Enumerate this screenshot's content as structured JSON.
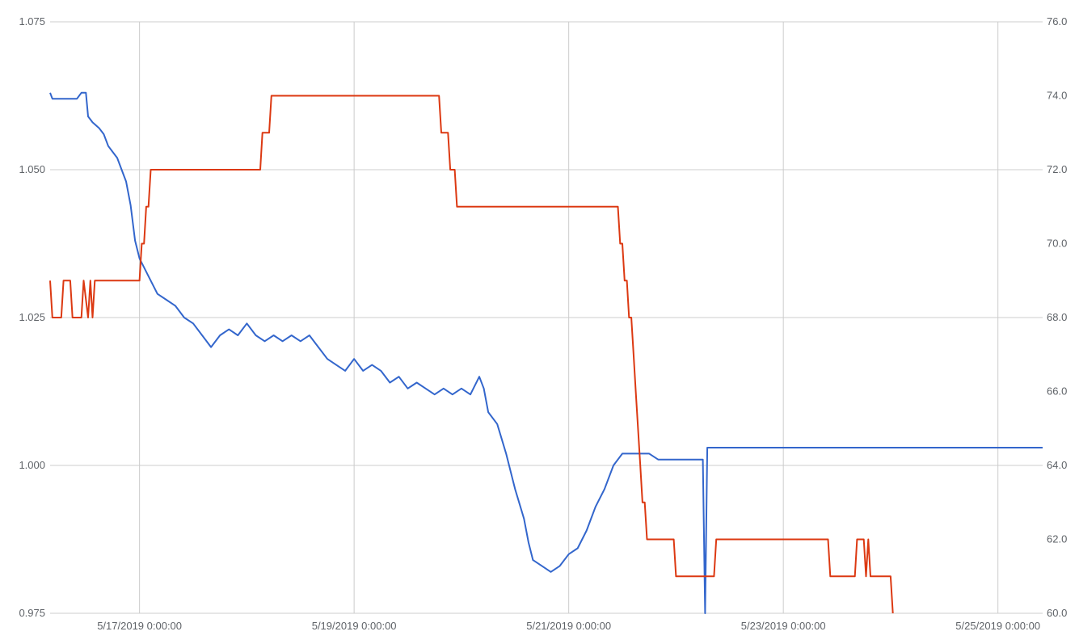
{
  "chart_data": {
    "type": "line",
    "title": "",
    "xlabel": "",
    "ylabel_left": "",
    "ylabel_right": "",
    "grid": true,
    "legend": "none",
    "x_range": [
      "5/16/2019 04:00",
      "5/25/2019 10:00"
    ],
    "x_ticks": [
      {
        "x": "5/17/2019 00:00",
        "label": "5/17/2019 0:00:00"
      },
      {
        "x": "5/19/2019 00:00",
        "label": "5/19/2019 0:00:00"
      },
      {
        "x": "5/21/2019 00:00",
        "label": "5/21/2019 0:00:00"
      },
      {
        "x": "5/23/2019 00:00",
        "label": "5/23/2019 0:00:00"
      },
      {
        "x": "5/25/2019 00:00",
        "label": "5/25/2019 0:00:00"
      }
    ],
    "y_left": {
      "min": 0.975,
      "max": 1.075,
      "ticks": [
        "0.975",
        "1.000",
        "1.025",
        "1.050",
        "1.075"
      ]
    },
    "y_right": {
      "min": 60.0,
      "max": 76.0,
      "ticks": [
        "60.0",
        "62.0",
        "64.0",
        "66.0",
        "68.0",
        "70.0",
        "72.0",
        "74.0",
        "76.0"
      ]
    },
    "series": [
      {
        "axis": "left",
        "color": "#3366cc",
        "points": [
          [
            "5/16/2019 04:00",
            1.063
          ],
          [
            "5/16/2019 04:30",
            1.062
          ],
          [
            "5/16/2019 08:00",
            1.062
          ],
          [
            "5/16/2019 10:00",
            1.062
          ],
          [
            "5/16/2019 11:00",
            1.063
          ],
          [
            "5/16/2019 12:00",
            1.063
          ],
          [
            "5/16/2019 12:30",
            1.059
          ],
          [
            "5/16/2019 13:30",
            1.058
          ],
          [
            "5/16/2019 15:00",
            1.057
          ],
          [
            "5/16/2019 16:00",
            1.056
          ],
          [
            "5/16/2019 17:00",
            1.054
          ],
          [
            "5/16/2019 18:00",
            1.053
          ],
          [
            "5/16/2019 19:00",
            1.052
          ],
          [
            "5/16/2019 20:00",
            1.05
          ],
          [
            "5/16/2019 21:00",
            1.048
          ],
          [
            "5/16/2019 22:00",
            1.044
          ],
          [
            "5/16/2019 23:00",
            1.038
          ],
          [
            "5/17/2019 00:00",
            1.035
          ],
          [
            "5/17/2019 02:00",
            1.032
          ],
          [
            "5/17/2019 04:00",
            1.029
          ],
          [
            "5/17/2019 06:00",
            1.028
          ],
          [
            "5/17/2019 08:00",
            1.027
          ],
          [
            "5/17/2019 10:00",
            1.025
          ],
          [
            "5/17/2019 12:00",
            1.024
          ],
          [
            "5/17/2019 14:00",
            1.022
          ],
          [
            "5/17/2019 16:00",
            1.02
          ],
          [
            "5/17/2019 18:00",
            1.022
          ],
          [
            "5/17/2019 20:00",
            1.023
          ],
          [
            "5/17/2019 22:00",
            1.022
          ],
          [
            "5/18/2019 00:00",
            1.024
          ],
          [
            "5/18/2019 02:00",
            1.022
          ],
          [
            "5/18/2019 04:00",
            1.021
          ],
          [
            "5/18/2019 06:00",
            1.022
          ],
          [
            "5/18/2019 08:00",
            1.021
          ],
          [
            "5/18/2019 10:00",
            1.022
          ],
          [
            "5/18/2019 12:00",
            1.021
          ],
          [
            "5/18/2019 14:00",
            1.022
          ],
          [
            "5/18/2019 16:00",
            1.02
          ],
          [
            "5/18/2019 18:00",
            1.018
          ],
          [
            "5/18/2019 20:00",
            1.017
          ],
          [
            "5/18/2019 22:00",
            1.016
          ],
          [
            "5/19/2019 00:00",
            1.018
          ],
          [
            "5/19/2019 02:00",
            1.016
          ],
          [
            "5/19/2019 04:00",
            1.017
          ],
          [
            "5/19/2019 06:00",
            1.016
          ],
          [
            "5/19/2019 08:00",
            1.014
          ],
          [
            "5/19/2019 10:00",
            1.015
          ],
          [
            "5/19/2019 12:00",
            1.013
          ],
          [
            "5/19/2019 14:00",
            1.014
          ],
          [
            "5/19/2019 16:00",
            1.013
          ],
          [
            "5/19/2019 18:00",
            1.012
          ],
          [
            "5/19/2019 20:00",
            1.013
          ],
          [
            "5/19/2019 22:00",
            1.012
          ],
          [
            "5/20/2019 00:00",
            1.013
          ],
          [
            "5/20/2019 02:00",
            1.012
          ],
          [
            "5/20/2019 04:00",
            1.015
          ],
          [
            "5/20/2019 05:00",
            1.013
          ],
          [
            "5/20/2019 06:00",
            1.009
          ],
          [
            "5/20/2019 08:00",
            1.007
          ],
          [
            "5/20/2019 10:00",
            1.002
          ],
          [
            "5/20/2019 12:00",
            0.996
          ],
          [
            "5/20/2019 14:00",
            0.991
          ],
          [
            "5/20/2019 15:00",
            0.987
          ],
          [
            "5/20/2019 16:00",
            0.984
          ],
          [
            "5/20/2019 18:00",
            0.983
          ],
          [
            "5/20/2019 20:00",
            0.982
          ],
          [
            "5/20/2019 22:00",
            0.983
          ],
          [
            "5/21/2019 00:00",
            0.985
          ],
          [
            "5/21/2019 02:00",
            0.986
          ],
          [
            "5/21/2019 04:00",
            0.989
          ],
          [
            "5/21/2019 06:00",
            0.993
          ],
          [
            "5/21/2019 08:00",
            0.996
          ],
          [
            "5/21/2019 10:00",
            1.0
          ],
          [
            "5/21/2019 12:00",
            1.002
          ],
          [
            "5/21/2019 14:00",
            1.002
          ],
          [
            "5/21/2019 16:00",
            1.002
          ],
          [
            "5/21/2019 18:00",
            1.002
          ],
          [
            "5/21/2019 20:00",
            1.001
          ],
          [
            "5/22/2019 00:00",
            1.001
          ],
          [
            "5/22/2019 04:00",
            1.001
          ],
          [
            "5/22/2019 06:00",
            1.001
          ],
          [
            "5/22/2019 06:30",
            0.975
          ],
          [
            "5/22/2019 07:00",
            1.003
          ],
          [
            "5/22/2019 10:00",
            1.003
          ],
          [
            "5/23/2019 00:00",
            1.003
          ],
          [
            "5/24/2019 00:00",
            1.003
          ],
          [
            "5/24/2019 22:00",
            1.003
          ],
          [
            "5/25/2019 02:00",
            1.003
          ],
          [
            "5/25/2019 06:00",
            1.003
          ],
          [
            "5/25/2019 10:00",
            1.003
          ]
        ]
      },
      {
        "axis": "right",
        "color": "#dc3912",
        "points": [
          [
            "5/16/2019 04:00",
            69.0
          ],
          [
            "5/16/2019 04:30",
            68.0
          ],
          [
            "5/16/2019 06:30",
            68.0
          ],
          [
            "5/16/2019 07:00",
            69.0
          ],
          [
            "5/16/2019 08:30",
            69.0
          ],
          [
            "5/16/2019 09:00",
            68.0
          ],
          [
            "5/16/2019 11:00",
            68.0
          ],
          [
            "5/16/2019 11:30",
            69.0
          ],
          [
            "5/16/2019 12:30",
            68.0
          ],
          [
            "5/16/2019 13:00",
            69.0
          ],
          [
            "5/16/2019 13:30",
            68.0
          ],
          [
            "5/16/2019 14:00",
            69.0
          ],
          [
            "5/17/2019 00:00",
            69.0
          ],
          [
            "5/17/2019 00:30",
            70.0
          ],
          [
            "5/17/2019 01:00",
            70.0
          ],
          [
            "5/17/2019 01:30",
            71.0
          ],
          [
            "5/17/2019 02:00",
            71.0
          ],
          [
            "5/17/2019 02:30",
            72.0
          ],
          [
            "5/18/2019 03:00",
            72.0
          ],
          [
            "5/18/2019 03:30",
            73.0
          ],
          [
            "5/18/2019 05:00",
            73.0
          ],
          [
            "5/18/2019 05:30",
            74.0
          ],
          [
            "5/19/2019 19:00",
            74.0
          ],
          [
            "5/19/2019 19:30",
            73.0
          ],
          [
            "5/19/2019 21:00",
            73.0
          ],
          [
            "5/19/2019 21:30",
            72.0
          ],
          [
            "5/19/2019 22:30",
            72.0
          ],
          [
            "5/19/2019 23:00",
            71.0
          ],
          [
            "5/21/2019 11:00",
            71.0
          ],
          [
            "5/21/2019 11:30",
            70.0
          ],
          [
            "5/21/2019 12:00",
            70.0
          ],
          [
            "5/21/2019 12:30",
            69.0
          ],
          [
            "5/21/2019 13:00",
            69.0
          ],
          [
            "5/21/2019 13:30",
            68.0
          ],
          [
            "5/21/2019 14:00",
            68.0
          ],
          [
            "5/21/2019 14:30",
            67.0
          ],
          [
            "5/21/2019 15:00",
            66.0
          ],
          [
            "5/21/2019 15:30",
            65.0
          ],
          [
            "5/21/2019 16:00",
            64.0
          ],
          [
            "5/21/2019 16:30",
            63.0
          ],
          [
            "5/21/2019 17:00",
            63.0
          ],
          [
            "5/21/2019 17:30",
            62.0
          ],
          [
            "5/21/2019 23:30",
            62.0
          ],
          [
            "5/22/2019 00:00",
            61.0
          ],
          [
            "5/22/2019 08:30",
            61.0
          ],
          [
            "5/22/2019 09:00",
            62.0
          ],
          [
            "5/23/2019 10:00",
            62.0
          ],
          [
            "5/23/2019 10:30",
            61.0
          ],
          [
            "5/23/2019 16:00",
            61.0
          ],
          [
            "5/23/2019 16:30",
            62.0
          ],
          [
            "5/23/2019 18:00",
            62.0
          ],
          [
            "5/23/2019 18:30",
            61.0
          ],
          [
            "5/23/2019 19:00",
            62.0
          ],
          [
            "5/23/2019 19:30",
            61.0
          ],
          [
            "5/24/2019 00:00",
            61.0
          ],
          [
            "5/24/2019 00:30",
            60.0
          ]
        ]
      }
    ]
  }
}
